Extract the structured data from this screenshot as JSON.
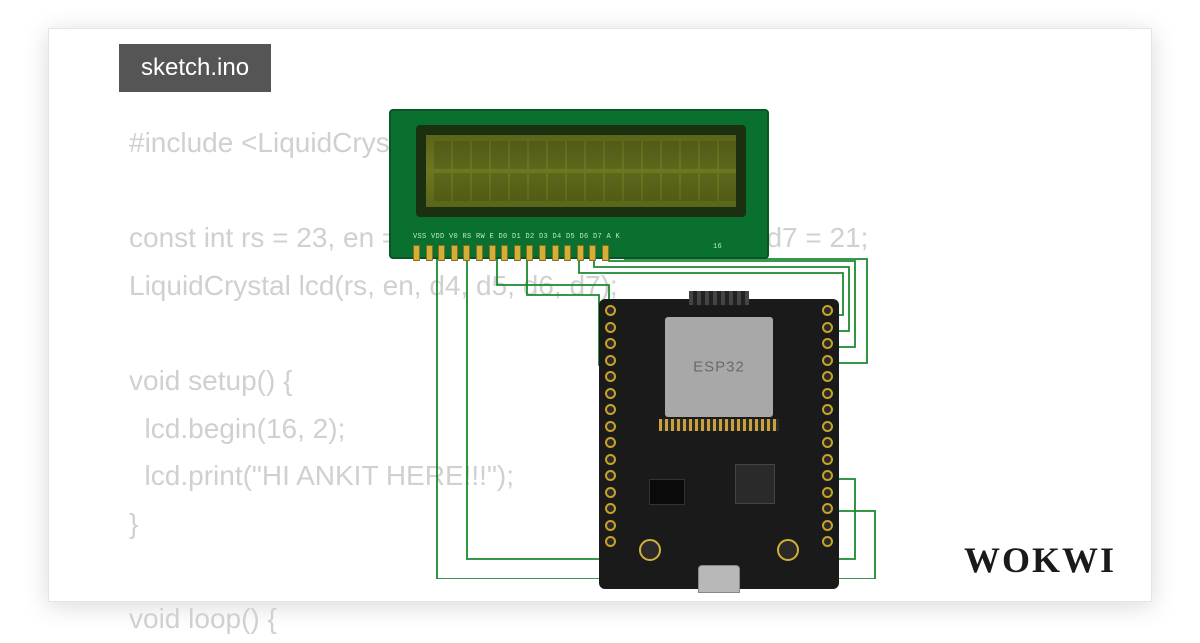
{
  "filename": "sketch.ino",
  "logo_text": "WOKWI",
  "code": {
    "font_color": "#d0d0d0",
    "font_size": 28,
    "text": "#include <LiquidCrystal.h>\n\nconst int rs = 23, en = 22, d4 = 5, d5 = 18, d6 = 19, d7 = 21;\nLiquidCrystal lcd(rs, en, d4, d5, d6, d7);\n\nvoid setup() {\n  lcd.begin(16, 2);\n  lcd.print(\"HI ANKIT HERE!!!\");\n}\n\nvoid loop() {"
  },
  "lcd": {
    "board_color": "#0a7030",
    "screen_color": "#6b7820",
    "bezel_color": "#1a3010",
    "cols": 16,
    "rows": 2,
    "pin_labels": "VSS VDD V0 RS RW E D0 D1 D2 D3 D4 D5 D6 D7 A   K",
    "pin_label_aux": "16",
    "pin_count": 16
  },
  "esp32": {
    "board_color": "#1a1a1a",
    "shield_color": "#a8a8a8",
    "shield_label": "ESP32",
    "pins_per_side": 15
  },
  "wires": {
    "color": "#1a8a2e",
    "count": 8,
    "paths": [
      "M 68 150 L 68 470 L 506 470 L 506 402 L 469 402",
      "M 98 150 L 98 450 L 486 450 L 486 370 L 469 370",
      "M 128 150 L 128 176 L 240 176 L 240 224 L 249 224",
      "M 158 150 L 158 186 L 230 186 L 230 256 L 249 256",
      "M 210 150 L 210 164 L 474 164 L 474 206 L 469 206",
      "M 225 150 L 225 158 L 480 158 L 480 222 L 469 222",
      "M 240 150 L 240 152 L 486 152 L 486 238 L 469 238",
      "M 255 150 L 498 150 L 498 254 L 469 254"
    ]
  },
  "colors": {
    "card_bg": "#ffffff",
    "card_border": "#e5e5e5",
    "tab_bg": "#555555",
    "tab_fg": "#ffffff",
    "logo_color": "#1a1a1a"
  }
}
